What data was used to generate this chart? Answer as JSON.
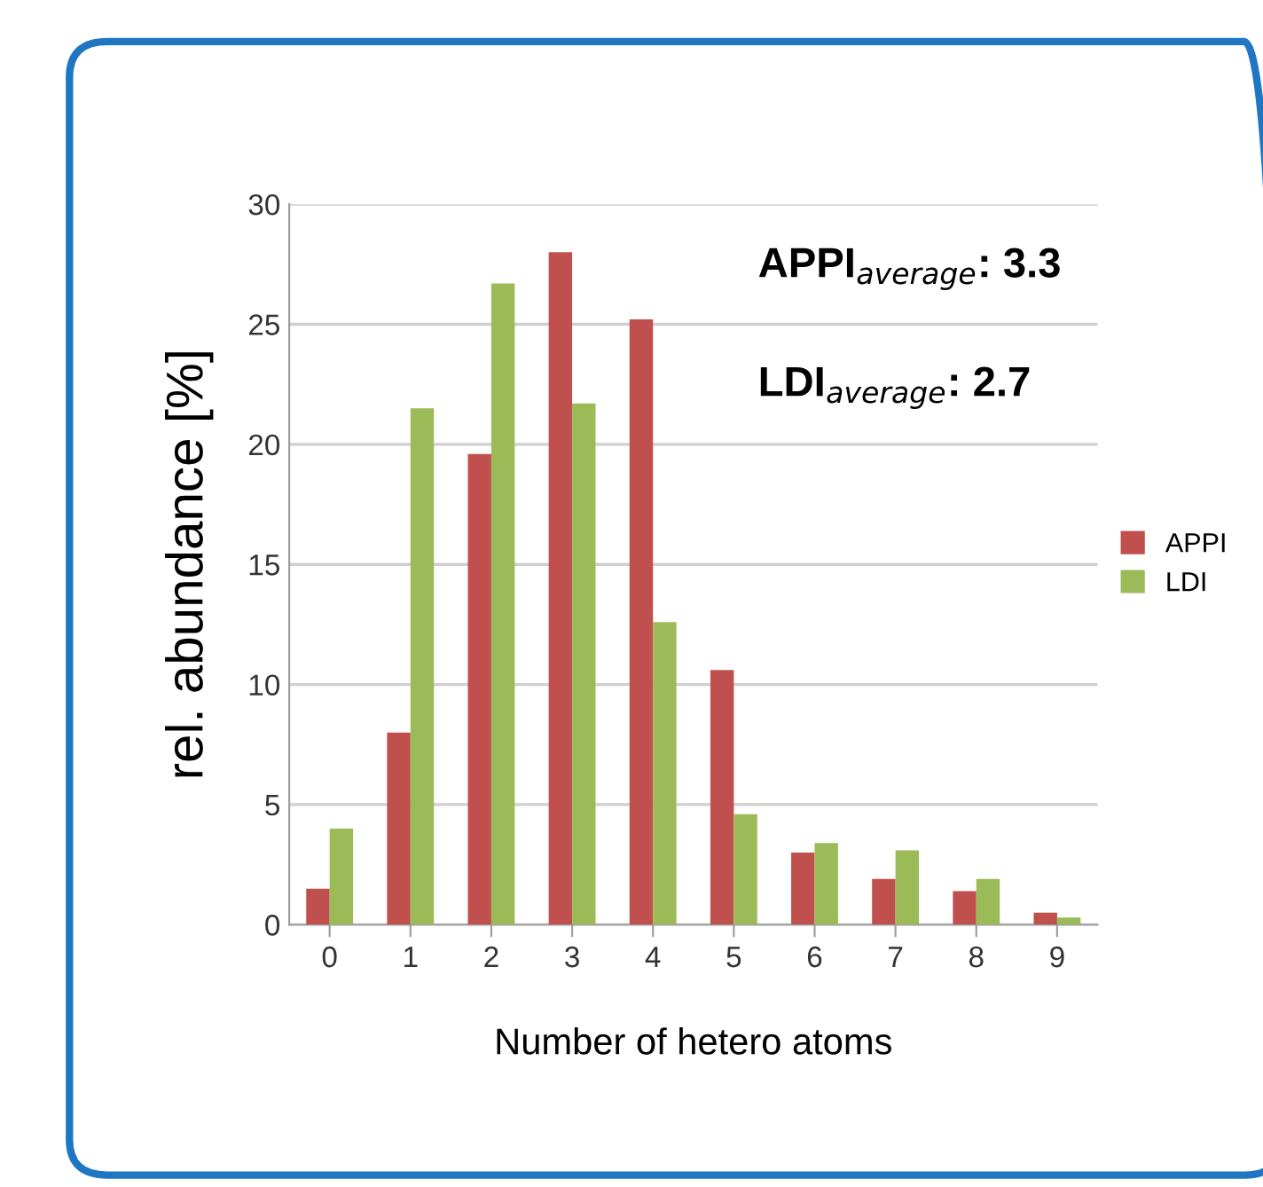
{
  "chart_data": {
    "type": "bar",
    "xlabel": "Number of hetero atoms",
    "ylabel": "rel. abundance [%]",
    "categories": [
      "0",
      "1",
      "2",
      "3",
      "4",
      "5",
      "6",
      "7",
      "8",
      "9"
    ],
    "series": [
      {
        "name": "APPI",
        "color": "#c0504d",
        "values": [
          1.5,
          8.0,
          19.6,
          28.0,
          25.2,
          10.6,
          3.0,
          1.9,
          1.4,
          0.5
        ]
      },
      {
        "name": "LDI",
        "color": "#9bbb59",
        "values": [
          4.0,
          21.5,
          26.7,
          21.7,
          12.6,
          4.6,
          3.4,
          3.1,
          1.9,
          0.3
        ]
      }
    ],
    "ylim": [
      0,
      30
    ],
    "yticks": [
      0,
      5,
      10,
      15,
      20,
      25,
      30
    ],
    "grid": "y",
    "legend": "right",
    "annotations": [
      "APPI$_{average}$: 3.3",
      "LDI$_{average}$: 2.7"
    ]
  }
}
